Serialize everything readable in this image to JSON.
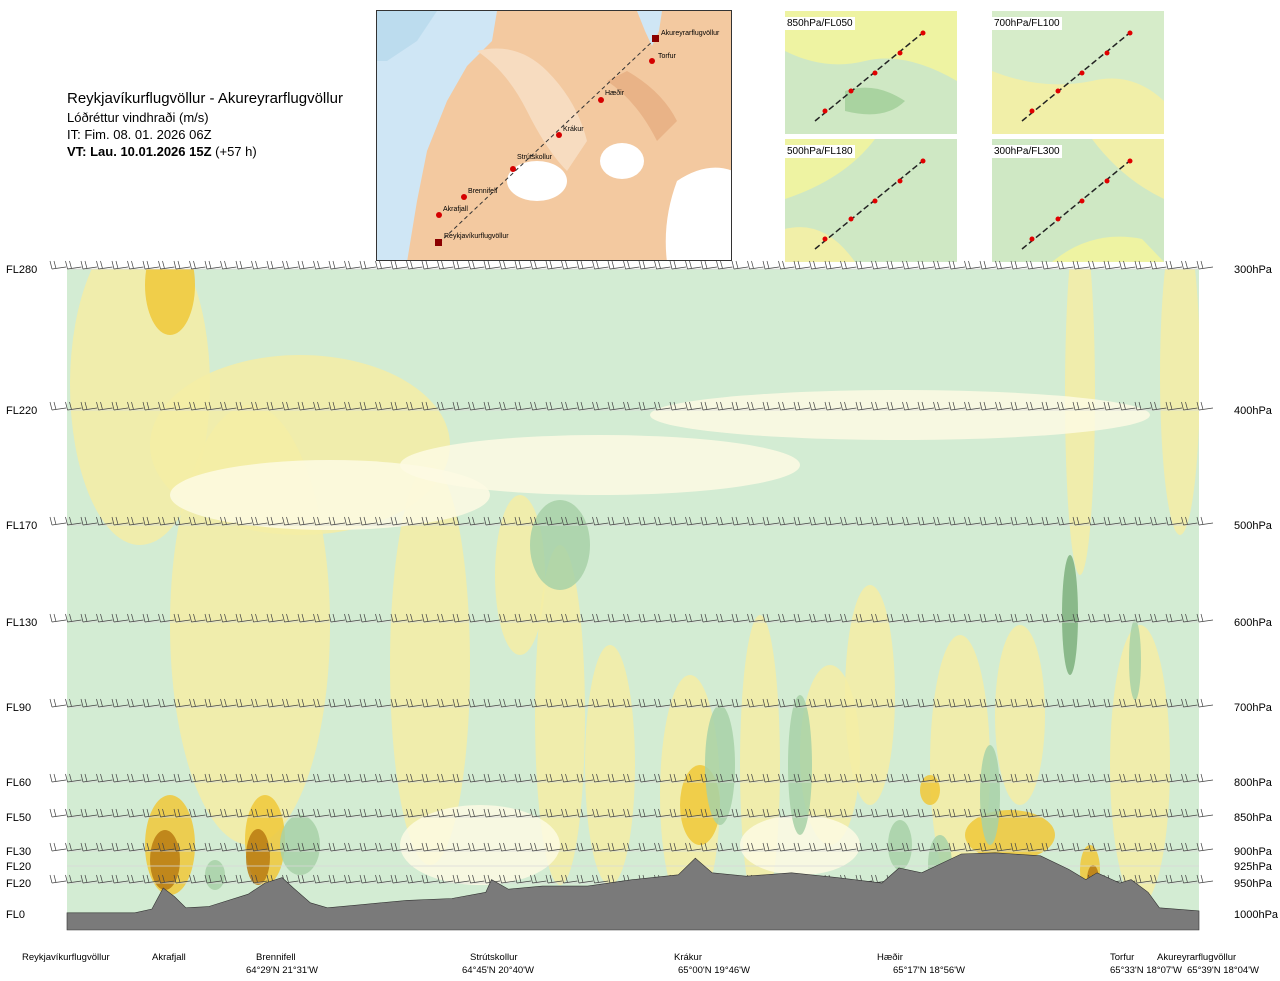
{
  "header": {
    "title": "Reykjavíkurflugvöllur - Akureyrarflugvöllur",
    "parameter": "Lóðréttur vindhraði (m/s)",
    "issue_time": "IT: Fim. 08. 01. 2026 06Z",
    "valid_time_bold": "VT: Lau. 10.01.2026 15Z",
    "valid_time_offset": "(+57 h)"
  },
  "route_map": {
    "labels": [
      "Akureyrarflugvöllur",
      "Torfur",
      "Hæðir",
      "Krákur",
      "Strútskollur",
      "Brennifell",
      "Akrafjall",
      "Reykjavíkurflugvöllur"
    ]
  },
  "mini_maps": [
    {
      "label": "850hPa/FL050"
    },
    {
      "label": "700hPa/FL100"
    },
    {
      "label": "500hPa/FL180"
    },
    {
      "label": "300hPa/FL300"
    }
  ],
  "chart_data": {
    "type": "cross-section",
    "title": "Reykjavíkurflugvöllur - Akureyrarflugvöllur",
    "variable": "Lóðréttur vindhraði (m/s)",
    "x_axis": "distance along route (0 = Reykjavíkurflugvöllur, 1 = Akureyrarflugvöllur)",
    "y_axis": "pressure (hPa)",
    "ylim": [
      1000,
      300
    ],
    "levels": [
      {
        "fl": "FL280",
        "hpa": "300hPa",
        "p": 300
      },
      {
        "fl": "FL220",
        "hpa": "400hPa",
        "p": 400
      },
      {
        "fl": "FL170",
        "hpa": "500hPa",
        "p": 500
      },
      {
        "fl": "FL130",
        "hpa": "600hPa",
        "p": 600
      },
      {
        "fl": "FL90",
        "hpa": "700hPa",
        "p": 700
      },
      {
        "fl": "FL60",
        "hpa": "800hPa",
        "p": 800
      },
      {
        "fl": "FL50",
        "hpa": "850hPa",
        "p": 850
      },
      {
        "fl": "FL30",
        "hpa": "900hPa",
        "p": 900
      },
      {
        "fl": "FL20",
        "hpa": "925hPa",
        "p": 925
      },
      {
        "fl": "FL20",
        "hpa": "950hPa",
        "p": 950
      },
      {
        "fl": "FL0",
        "hpa": "1000hPa",
        "p": 1000
      }
    ],
    "waypoints": [
      {
        "name": "Reykjavíkurflugvöllur",
        "coord": "",
        "pos": 0.0
      },
      {
        "name": "Akrafjall",
        "coord": "",
        "pos": 0.085
      },
      {
        "name": "Brennifell",
        "coord": "64°29'N 21°31'W",
        "pos": 0.195
      },
      {
        "name": "Strútskollur",
        "coord": "64°45'N 20°40'W",
        "pos": 0.375
      },
      {
        "name": "Krákur",
        "coord": "65°00'N 19°46'W",
        "pos": 0.555
      },
      {
        "name": "Hæðir",
        "coord": "65°17'N 18°56'W",
        "pos": 0.735
      },
      {
        "name": "Torfur",
        "coord": "65°33'N 18°07'W",
        "pos": 0.95
      },
      {
        "name": "Akureyrarflugvöllur",
        "coord": "65°39'N 18°04'W",
        "pos": 1.0
      }
    ],
    "terrain_pressure_hPa": [
      {
        "x": 0.0,
        "p": 998
      },
      {
        "x": 0.06,
        "p": 998
      },
      {
        "x": 0.075,
        "p": 992
      },
      {
        "x": 0.085,
        "p": 958
      },
      {
        "x": 0.095,
        "p": 972
      },
      {
        "x": 0.105,
        "p": 990
      },
      {
        "x": 0.125,
        "p": 988
      },
      {
        "x": 0.16,
        "p": 968
      },
      {
        "x": 0.175,
        "p": 950
      },
      {
        "x": 0.19,
        "p": 942
      },
      {
        "x": 0.2,
        "p": 958
      },
      {
        "x": 0.215,
        "p": 982
      },
      {
        "x": 0.23,
        "p": 990
      },
      {
        "x": 0.26,
        "p": 985
      },
      {
        "x": 0.3,
        "p": 978
      },
      {
        "x": 0.34,
        "p": 975
      },
      {
        "x": 0.37,
        "p": 965
      },
      {
        "x": 0.375,
        "p": 945
      },
      {
        "x": 0.39,
        "p": 960
      },
      {
        "x": 0.42,
        "p": 955
      },
      {
        "x": 0.46,
        "p": 955
      },
      {
        "x": 0.5,
        "p": 945
      },
      {
        "x": 0.54,
        "p": 938
      },
      {
        "x": 0.555,
        "p": 912
      },
      {
        "x": 0.57,
        "p": 935
      },
      {
        "x": 0.6,
        "p": 940
      },
      {
        "x": 0.64,
        "p": 935
      },
      {
        "x": 0.68,
        "p": 942
      },
      {
        "x": 0.72,
        "p": 950
      },
      {
        "x": 0.735,
        "p": 928
      },
      {
        "x": 0.755,
        "p": 935
      },
      {
        "x": 0.79,
        "p": 905
      },
      {
        "x": 0.82,
        "p": 903
      },
      {
        "x": 0.86,
        "p": 908
      },
      {
        "x": 0.885,
        "p": 930
      },
      {
        "x": 0.9,
        "p": 945
      },
      {
        "x": 0.91,
        "p": 935
      },
      {
        "x": 0.93,
        "p": 950
      },
      {
        "x": 0.94,
        "p": 945
      },
      {
        "x": 0.955,
        "p": 965
      },
      {
        "x": 0.965,
        "p": 990
      },
      {
        "x": 1.0,
        "p": 995
      }
    ],
    "color_scale": {
      "strong_up": "#b87a12",
      "up": "#f0c838",
      "weak_up": "#f4eda4",
      "neutral": "#fdfae3",
      "weak_down": "#d3ecd3",
      "down": "#a7d1a7",
      "strong_down": "#7db07d",
      "terrain": "#7a7a7a"
    }
  }
}
